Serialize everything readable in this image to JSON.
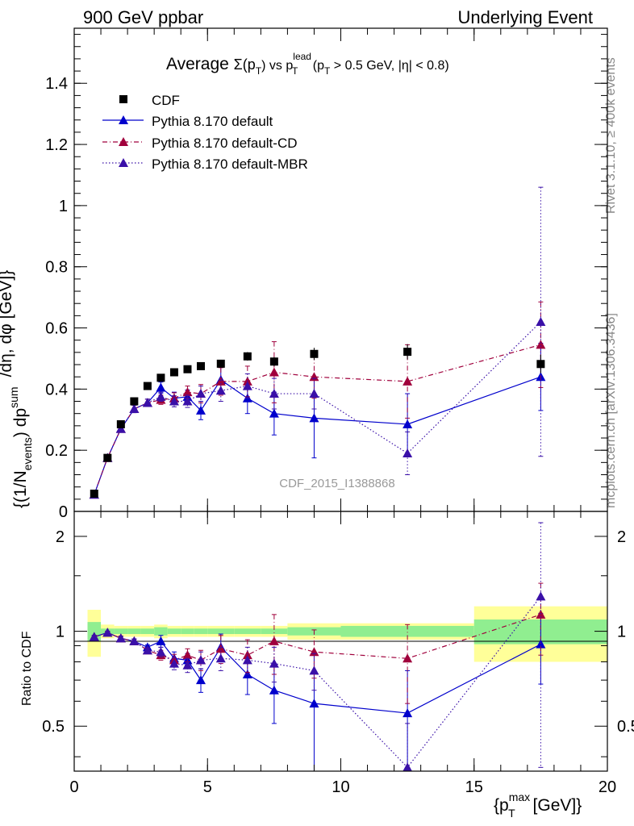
{
  "header": {
    "left": "900 GeV ppbar",
    "right": "Underlying Event"
  },
  "side_labels": {
    "rivet": "Rivet 3.1.10, ≥ 400k events",
    "mcplots": "mcplots.cern.ch [arXiv:1306.3436]"
  },
  "watermark": "CDF_2015_I1388868",
  "colors": {
    "cdf": "#000000",
    "default": "#0000cc",
    "cd": "#a0003c",
    "mbr": "#3a10a8",
    "band_inner": "#90ee90",
    "band_outer": "#ffff99"
  },
  "chart_data": [
    {
      "type": "scatter",
      "title": "Average Σ(pT) vs pT lead (pT > 0.5 GeV, |η| < 0.8)",
      "title_parts": {
        "a": "Average ",
        "sigma": "Σ(p",
        "sub_t": "T",
        "b": ") vs p",
        "sup_lead": "lead",
        "c": " (p",
        "d": " > 0.5 GeV, |η| < 0.8)"
      },
      "ylabel": "{(1/N_events) dp_T^sum/dη, dφ [GeV]}",
      "ylabel_parts": {
        "a": "{(1/N",
        "sub_events": "events",
        "b": ") dp",
        "sup_sum": "sum",
        "c": "/dη, dφ [GeV]}"
      },
      "xlim": [
        0,
        20
      ],
      "ylim": [
        0,
        1.58
      ],
      "yticks": [
        0,
        0.2,
        0.4,
        0.6,
        0.8,
        1,
        1.2,
        1.4
      ],
      "ytick_labels": [
        "0",
        "0.2",
        "0.4",
        "0.6",
        "0.8",
        "1",
        "1.2",
        "1.4"
      ],
      "legend_position": "top-left",
      "series": [
        {
          "name": "CDF",
          "key": "cdf",
          "x": [
            0.75,
            1.25,
            1.75,
            2.25,
            2.75,
            3.25,
            3.75,
            4.25,
            4.75,
            5.5,
            6.5,
            7.5,
            9.0,
            12.5,
            17.5
          ],
          "y": [
            0.058,
            0.175,
            0.285,
            0.36,
            0.41,
            0.437,
            0.455,
            0.465,
            0.475,
            0.483,
            0.507,
            0.49,
            0.515,
            0.522,
            0.482
          ],
          "err": [
            0.004,
            0.006,
            0.008,
            0.01,
            0.012,
            0.012,
            0.012,
            0.012,
            0.012,
            0.013,
            0.014,
            0.015,
            0.02,
            0.025,
            0.03
          ]
        },
        {
          "name": "Pythia 8.170 default",
          "key": "default",
          "x": [
            0.75,
            1.25,
            1.75,
            2.25,
            2.75,
            3.25,
            3.75,
            4.25,
            4.75,
            5.5,
            6.5,
            7.5,
            9.0,
            12.5,
            17.5
          ],
          "y": [
            0.055,
            0.175,
            0.27,
            0.335,
            0.355,
            0.405,
            0.37,
            0.375,
            0.33,
            0.43,
            0.37,
            0.32,
            0.305,
            0.285,
            0.44
          ],
          "err": [
            0.005,
            0.008,
            0.01,
            0.012,
            0.012,
            0.018,
            0.02,
            0.022,
            0.03,
            0.045,
            0.05,
            0.07,
            0.13,
            0.1,
            0.11
          ]
        },
        {
          "name": "Pythia 8.170 default-CD",
          "key": "cd",
          "x": [
            0.75,
            1.25,
            1.75,
            2.25,
            2.75,
            3.25,
            3.75,
            4.25,
            4.75,
            5.5,
            6.5,
            7.5,
            9.0,
            12.5,
            17.5
          ],
          "y": [
            0.055,
            0.175,
            0.27,
            0.335,
            0.355,
            0.365,
            0.37,
            0.39,
            0.385,
            0.425,
            0.425,
            0.455,
            0.44,
            0.425,
            0.545
          ],
          "err": [
            0.005,
            0.008,
            0.01,
            0.012,
            0.012,
            0.015,
            0.018,
            0.02,
            0.03,
            0.045,
            0.05,
            0.1,
            0.07,
            0.12,
            0.14
          ]
        },
        {
          "name": "Pythia 8.170 default-MBR",
          "key": "mbr",
          "x": [
            0.75,
            1.25,
            1.75,
            2.25,
            2.75,
            3.25,
            3.75,
            4.25,
            4.75,
            5.5,
            6.5,
            7.5,
            9.0,
            12.5,
            17.5
          ],
          "y": [
            0.055,
            0.175,
            0.27,
            0.335,
            0.355,
            0.375,
            0.36,
            0.36,
            0.385,
            0.395,
            0.41,
            0.385,
            0.385,
            0.19,
            0.62
          ],
          "err": [
            0.005,
            0.008,
            0.01,
            0.012,
            0.012,
            0.015,
            0.018,
            0.02,
            0.025,
            0.035,
            0.04,
            0.05,
            0.05,
            0.07,
            0.44
          ]
        }
      ]
    },
    {
      "type": "scatter",
      "ylabel": "Ratio to CDF",
      "xlabel": "{p_T^max [GeV]}",
      "xlabel_parts": {
        "a": "{p",
        "sup_max": "max",
        "b": " [GeV]}"
      },
      "xlim": [
        0,
        20
      ],
      "ylim": [
        0.36,
        2.4
      ],
      "yticks": [
        0.5,
        1,
        2
      ],
      "ytick_labels": [
        "0.5",
        "1",
        "2"
      ],
      "xticks": [
        0,
        5,
        10,
        15,
        20
      ],
      "xtick_labels": [
        "0",
        "5",
        "10",
        "15",
        "20"
      ],
      "bands": {
        "edges": [
          0.5,
          1.0,
          1.5,
          2.0,
          2.5,
          3.0,
          3.5,
          4.0,
          4.5,
          5.0,
          6.0,
          7.0,
          8.0,
          10.0,
          15.0,
          20.0
        ],
        "inner": [
          0.07,
          0.02,
          0.02,
          0.02,
          0.02,
          0.03,
          0.02,
          0.02,
          0.02,
          0.02,
          0.02,
          0.02,
          0.03,
          0.04,
          0.09
        ],
        "outer": [
          0.17,
          0.05,
          0.04,
          0.04,
          0.04,
          0.05,
          0.04,
          0.04,
          0.04,
          0.04,
          0.04,
          0.04,
          0.06,
          0.06,
          0.2
        ]
      },
      "series": [
        {
          "name": "Pythia 8.170 default",
          "key": "default",
          "x": [
            0.75,
            1.25,
            1.75,
            2.25,
            2.75,
            3.25,
            3.75,
            4.25,
            4.75,
            5.5,
            6.5,
            7.5,
            9.0,
            12.5,
            17.5
          ],
          "y": [
            0.96,
            0.99,
            0.95,
            0.93,
            0.89,
            0.93,
            0.82,
            0.81,
            0.7,
            0.89,
            0.73,
            0.65,
            0.59,
            0.55,
            0.91
          ],
          "err": [
            0.01,
            0.01,
            0.015,
            0.015,
            0.015,
            0.04,
            0.04,
            0.04,
            0.06,
            0.09,
            0.1,
            0.14,
            0.25,
            0.2,
            0.23
          ]
        },
        {
          "name": "Pythia 8.170 default-CD",
          "key": "cd",
          "x": [
            0.75,
            1.25,
            1.75,
            2.25,
            2.75,
            3.25,
            3.75,
            4.25,
            4.75,
            5.5,
            6.5,
            7.5,
            9.0,
            12.5,
            17.5
          ],
          "y": [
            0.96,
            0.99,
            0.95,
            0.93,
            0.87,
            0.84,
            0.81,
            0.84,
            0.81,
            0.88,
            0.84,
            0.93,
            0.86,
            0.82,
            1.13
          ],
          "err": [
            0.01,
            0.01,
            0.015,
            0.015,
            0.015,
            0.03,
            0.035,
            0.04,
            0.06,
            0.09,
            0.1,
            0.2,
            0.15,
            0.23,
            0.29
          ]
        },
        {
          "name": "Pythia 8.170 default-MBR",
          "key": "mbr",
          "x": [
            0.75,
            1.25,
            1.75,
            2.25,
            2.75,
            3.25,
            3.75,
            4.25,
            4.75,
            5.5,
            6.5,
            7.5,
            9.0,
            12.5,
            17.5
          ],
          "y": [
            0.96,
            0.99,
            0.95,
            0.93,
            0.87,
            0.86,
            0.79,
            0.78,
            0.81,
            0.82,
            0.81,
            0.79,
            0.75,
            0.37,
            1.29
          ],
          "err": [
            0.01,
            0.01,
            0.015,
            0.015,
            0.015,
            0.03,
            0.035,
            0.04,
            0.05,
            0.07,
            0.08,
            0.1,
            0.1,
            0.14,
            0.92
          ]
        }
      ]
    }
  ]
}
